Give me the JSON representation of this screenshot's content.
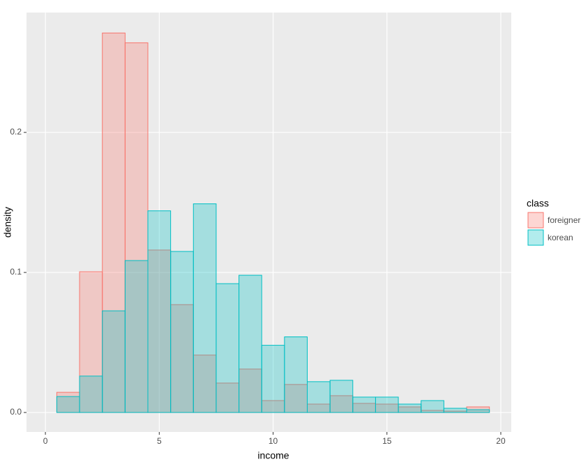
{
  "chart_data": {
    "type": "histogram",
    "x_label": "income",
    "y_label": "density",
    "legend_title": "class",
    "bins": [
      0.5,
      1.5,
      2.5,
      3.5,
      4.5,
      5.5,
      6.5,
      7.5,
      8.5,
      9.5,
      10.5,
      11.5,
      12.5,
      13.5,
      14.5,
      15.5,
      16.5,
      17.5,
      18.5,
      19.5
    ],
    "series": [
      {
        "name": "foreigner",
        "color": "#F8766D",
        "values": [
          0.0144,
          0.1005,
          0.271,
          0.264,
          0.116,
          0.077,
          0.041,
          0.021,
          0.031,
          0.0085,
          0.02,
          0.006,
          0.012,
          0.0065,
          0.006,
          0.004,
          0.0015,
          0.001,
          0.004
        ]
      },
      {
        "name": "korean",
        "color": "#00BFC4",
        "values": [
          0.0114,
          0.026,
          0.0726,
          0.1085,
          0.144,
          0.115,
          0.149,
          0.092,
          0.098,
          0.048,
          0.054,
          0.022,
          0.023,
          0.011,
          0.011,
          0.006,
          0.0085,
          0.003,
          0.002
        ]
      }
    ],
    "xlim": [
      -0.83,
      20.46
    ],
    "ylim": [
      -0.0139,
      0.2856
    ],
    "xticks": [
      0,
      5,
      10,
      15,
      20
    ],
    "yticks": [
      {
        "value": 0,
        "label": "0.0"
      },
      0.1,
      0.2
    ],
    "grid": true,
    "legend": "right"
  }
}
